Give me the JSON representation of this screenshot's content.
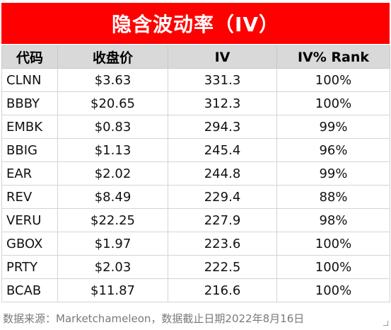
{
  "title": "隐含波动率（IV）",
  "source_note": "数据来源：Marketchameleon，数据截止日期2022年8月16日",
  "chart_data": {
    "type": "table",
    "title": "隐含波动率（IV）",
    "columns": [
      "代码",
      "收盘价",
      "IV",
      "IV% Rank"
    ],
    "rows": [
      [
        "CLNN",
        "$3.63",
        "331.3",
        "100%"
      ],
      [
        "BBBY",
        "$20.65",
        "312.3",
        "100%"
      ],
      [
        "EMBK",
        "$0.83",
        "294.3",
        "99%"
      ],
      [
        "BBIG",
        "$1.13",
        "245.4",
        "96%"
      ],
      [
        "EAR",
        "$2.02",
        "244.8",
        "99%"
      ],
      [
        "REV",
        "$8.49",
        "229.4",
        "88%"
      ],
      [
        "VERU",
        "$22.25",
        "227.9",
        "98%"
      ],
      [
        "GBOX",
        "$1.97",
        "223.6",
        "100%"
      ],
      [
        "PRTY",
        "$2.03",
        "222.5",
        "100%"
      ],
      [
        "BCAB",
        "$11.87",
        "216.6",
        "100%"
      ]
    ]
  },
  "colors": {
    "title_bg": "#ff0000",
    "title_text": "#ffffff",
    "header_bg": "#d9d9d9",
    "source_text": "#7a7a7a"
  }
}
